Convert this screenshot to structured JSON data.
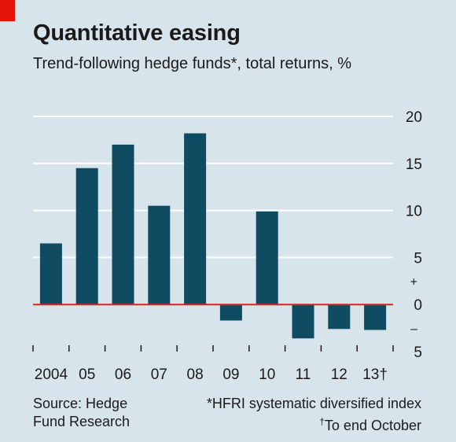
{
  "title": "Quantitative easing",
  "subtitle": "Trend-following hedge funds*, total returns, %",
  "source": [
    "Source: Hedge",
    "Fund Research"
  ],
  "footnotes": {
    "index_note": "*HFRI systematic diversified index",
    "dagger_mark": "†",
    "dagger_note": "To end October"
  },
  "colors": {
    "background": "#d7e4ec",
    "bar": "#0f4c61",
    "zero_line": "#d7261e",
    "grid": "#ffffff",
    "accent": "#e3120b"
  },
  "chart_data": {
    "type": "bar",
    "categories": [
      "2004",
      "05",
      "06",
      "07",
      "08",
      "09",
      "10",
      "11",
      "12",
      "13†"
    ],
    "values": [
      6.5,
      14.5,
      17.0,
      10.5,
      18.2,
      -1.7,
      9.9,
      -3.6,
      -2.6,
      -2.7
    ],
    "ylim": [
      -5,
      20
    ],
    "y_ticks": [
      20,
      15,
      10,
      5,
      0,
      -5
    ],
    "y_tick_labels": [
      "20",
      "15",
      "10",
      "5",
      "0",
      "5"
    ],
    "sign_markers": [
      "+",
      "–"
    ],
    "y_axis_side": "right",
    "grid": true,
    "xlabel": "",
    "ylabel": ""
  }
}
